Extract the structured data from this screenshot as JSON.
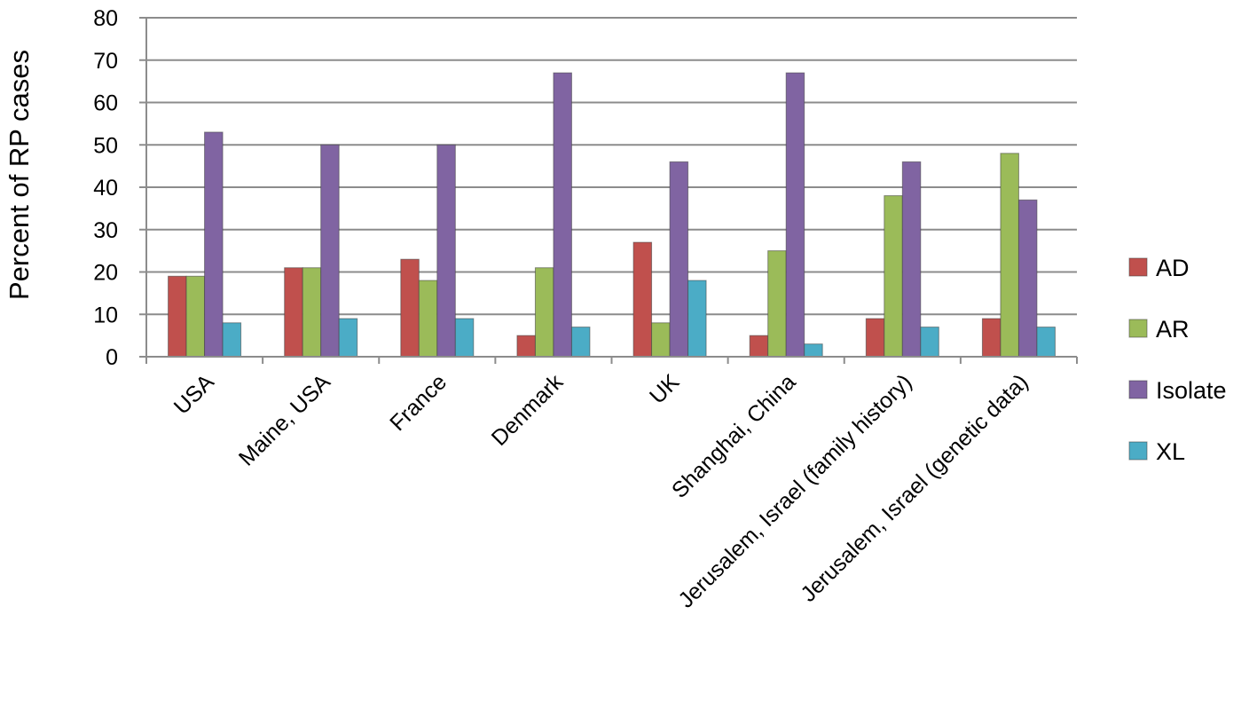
{
  "chart_data": {
    "type": "bar",
    "title": "",
    "xlabel": "",
    "ylabel": "Percent of RP cases",
    "ylim": [
      0,
      80
    ],
    "yticks": [
      0,
      10,
      20,
      30,
      40,
      50,
      60,
      70,
      80
    ],
    "grid": true,
    "legend_position": "right",
    "categories": [
      "USA",
      "Maine, USA",
      "France",
      "Denmark",
      "UK",
      "Shanghai, China",
      "Jerusalem, Israel (family history)",
      "Jerusalem, Israel (genetic data)"
    ],
    "series": [
      {
        "name": "AD",
        "color": "#C0504D",
        "values": [
          19,
          21,
          23,
          5,
          27,
          5,
          9,
          9
        ]
      },
      {
        "name": "AR",
        "color": "#9BBB59",
        "values": [
          19,
          21,
          18,
          21,
          8,
          25,
          38,
          48
        ]
      },
      {
        "name": "Isolate",
        "color": "#8064A2",
        "values": [
          53,
          50,
          50,
          67,
          46,
          67,
          46,
          37
        ]
      },
      {
        "name": "XL",
        "color": "#4BACC6",
        "values": [
          8,
          9,
          9,
          7,
          18,
          3,
          7,
          7
        ]
      }
    ]
  }
}
